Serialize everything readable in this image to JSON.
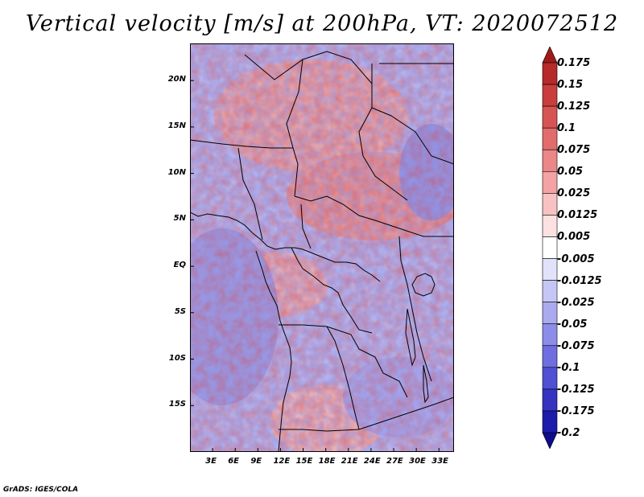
{
  "title": "Vertical velocity [m/s] at 200hPa, VT: 2020072512",
  "credit": "GrADS: IGES/COLA",
  "map": {
    "lon_range": [
      0,
      35
    ],
    "lat_range": [
      -20,
      24
    ],
    "lat_ticks": [
      {
        "value": 20,
        "label": "20N"
      },
      {
        "value": 15,
        "label": "15N"
      },
      {
        "value": 10,
        "label": "10N"
      },
      {
        "value": 5,
        "label": "5N"
      },
      {
        "value": 0,
        "label": "EQ"
      },
      {
        "value": -5,
        "label": "5S"
      },
      {
        "value": -10,
        "label": "10S"
      },
      {
        "value": -15,
        "label": "15S"
      }
    ],
    "lon_ticks": [
      {
        "value": 3,
        "label": "3E"
      },
      {
        "value": 6,
        "label": "6E"
      },
      {
        "value": 9,
        "label": "9E"
      },
      {
        "value": 12,
        "label": "12E"
      },
      {
        "value": 15,
        "label": "15E"
      },
      {
        "value": 18,
        "label": "18E"
      },
      {
        "value": 21,
        "label": "21E"
      },
      {
        "value": 24,
        "label": "24E"
      },
      {
        "value": 27,
        "label": "27E"
      },
      {
        "value": 30,
        "label": "30E"
      },
      {
        "value": 33,
        "label": "33E"
      }
    ]
  },
  "colorbar": {
    "labels": [
      "0.175",
      "0.15",
      "0.125",
      "0.1",
      "0.075",
      "0.05",
      "0.025",
      "0.0125",
      "0.005",
      "-0.005",
      "-0.0125",
      "-0.025",
      "-0.05",
      "-0.075",
      "-0.1",
      "-0.125",
      "-0.175",
      "-0.2"
    ],
    "colors": [
      "#a01a1a",
      "#b62a2a",
      "#c93d3d",
      "#d85454",
      "#e26c6c",
      "#eb8787",
      "#f3a3a3",
      "#f8c2c2",
      "#fce1e1",
      "#ffffff",
      "#e2e2fb",
      "#c6c6f6",
      "#aaaaf0",
      "#8c8ce9",
      "#6e6ee0",
      "#5050d2",
      "#3434c0",
      "#1c1caa",
      "#0c0c8c"
    ]
  }
}
